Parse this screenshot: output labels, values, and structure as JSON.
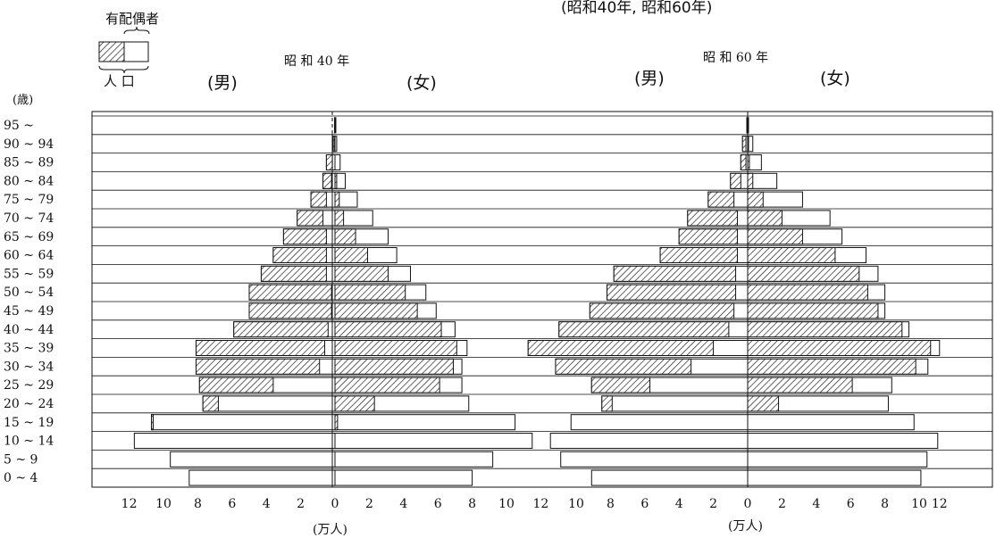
{
  "title": "(昭和40年, 昭和60年)",
  "legend": {
    "married_label": "有配偶者",
    "population_label": "人 口"
  },
  "age_unit_label": "(歳)",
  "xaxis_unit_label": "(万人)",
  "colors": {
    "ink": "#111111",
    "paper": "#ffffff"
  },
  "chart_data": [
    {
      "type": "bar",
      "title": "昭 和 40 年",
      "male_label": "(男)",
      "female_label": "(女)",
      "categories": [
        "95 ~",
        "90 ~ 94",
        "85 ~ 89",
        "80 ~ 84",
        "75 ~ 79",
        "70 ~ 74",
        "65 ~ 69",
        "60 ~ 64",
        "55 ~ 59",
        "50 ~ 54",
        "45 ~ 49",
        "40 ~ 44",
        "35 ~ 39",
        "30 ~ 34",
        "25 ~ 29",
        "20 ~ 24",
        "15 ~ 19",
        "10 ~ 14",
        "5 ~ 9",
        "0 ~ 4"
      ],
      "male_ticks": [
        12,
        10,
        8,
        6,
        4,
        2,
        0
      ],
      "female_ticks": [
        0,
        2,
        4,
        6,
        8,
        10,
        12
      ],
      "series": [
        {
          "name": "男 人口",
          "values": [
            0.02,
            0.1,
            0.5,
            0.7,
            1.4,
            2.2,
            3.0,
            3.6,
            4.3,
            5.0,
            5.0,
            5.9,
            8.1,
            8.1,
            7.9,
            7.7,
            10.7,
            11.7,
            9.6,
            8.5
          ]
        },
        {
          "name": "男 有配偶者",
          "values": [
            0.01,
            0.08,
            0.35,
            0.5,
            0.9,
            1.5,
            2.5,
            3.1,
            3.8,
            4.8,
            4.8,
            5.5,
            7.5,
            7.2,
            4.3,
            0.9,
            0.1,
            0.0,
            0.0,
            0.0
          ]
        },
        {
          "name": "女 人口",
          "values": [
            0.05,
            0.1,
            0.3,
            0.6,
            1.3,
            2.2,
            3.1,
            3.6,
            4.4,
            5.3,
            5.9,
            7.0,
            7.7,
            7.4,
            7.4,
            7.8,
            10.5,
            11.5,
            9.2,
            8.0
          ]
        },
        {
          "name": "女 有配偶者",
          "values": [
            0.0,
            0.0,
            0.0,
            0.1,
            0.25,
            0.5,
            1.2,
            1.9,
            3.1,
            4.1,
            4.8,
            6.2,
            7.1,
            6.9,
            6.1,
            2.3,
            0.15,
            0.0,
            0.0,
            0.0
          ]
        }
      ]
    },
    {
      "type": "bar",
      "title": "昭 和 60 年",
      "male_label": "(男)",
      "female_label": "(女)",
      "categories": [
        "95 ~",
        "90 ~ 94",
        "85 ~ 89",
        "80 ~ 84",
        "75 ~ 79",
        "70 ~ 74",
        "65 ~ 69",
        "60 ~ 64",
        "55 ~ 59",
        "50 ~ 54",
        "45 ~ 49",
        "40 ~ 44",
        "35 ~ 39",
        "30 ~ 34",
        "25 ~ 29",
        "20 ~ 24",
        "15 ~ 19",
        "10 ~ 14",
        "5 ~ 9",
        "0 ~ 4"
      ],
      "male_ticks": [
        10,
        8,
        6,
        4,
        2,
        0
      ],
      "female_ticks": [
        0,
        2,
        4,
        6,
        8,
        10,
        12
      ],
      "series": [
        {
          "name": "男 人口",
          "values": [
            0.05,
            0.3,
            0.4,
            1.0,
            2.3,
            3.5,
            4.0,
            5.1,
            7.8,
            8.2,
            9.2,
            11.0,
            12.8,
            11.2,
            9.1,
            8.5,
            10.3,
            11.5,
            10.9,
            9.1
          ]
        },
        {
          "name": "男 有配偶者",
          "values": [
            0.03,
            0.2,
            0.3,
            0.6,
            1.5,
            2.9,
            3.4,
            4.5,
            7.1,
            7.5,
            8.4,
            9.9,
            10.8,
            7.9,
            3.4,
            0.6,
            0.0,
            0.0,
            0.0,
            0.0
          ]
        },
        {
          "name": "女 人口",
          "values": [
            0.05,
            0.3,
            0.8,
            1.7,
            3.2,
            4.8,
            5.5,
            6.9,
            7.6,
            8.0,
            8.0,
            9.4,
            12.0,
            10.7,
            8.4,
            8.2,
            9.7,
            11.8,
            10.6,
            10.1
          ]
        },
        {
          "name": "女 有配偶者",
          "values": [
            0.0,
            0.05,
            0.1,
            0.3,
            0.9,
            2.0,
            3.2,
            5.1,
            6.5,
            7.0,
            7.6,
            9.0,
            11.0,
            9.8,
            6.1,
            1.8,
            0.0,
            0.0,
            0.0,
            0.0
          ]
        }
      ]
    }
  ]
}
